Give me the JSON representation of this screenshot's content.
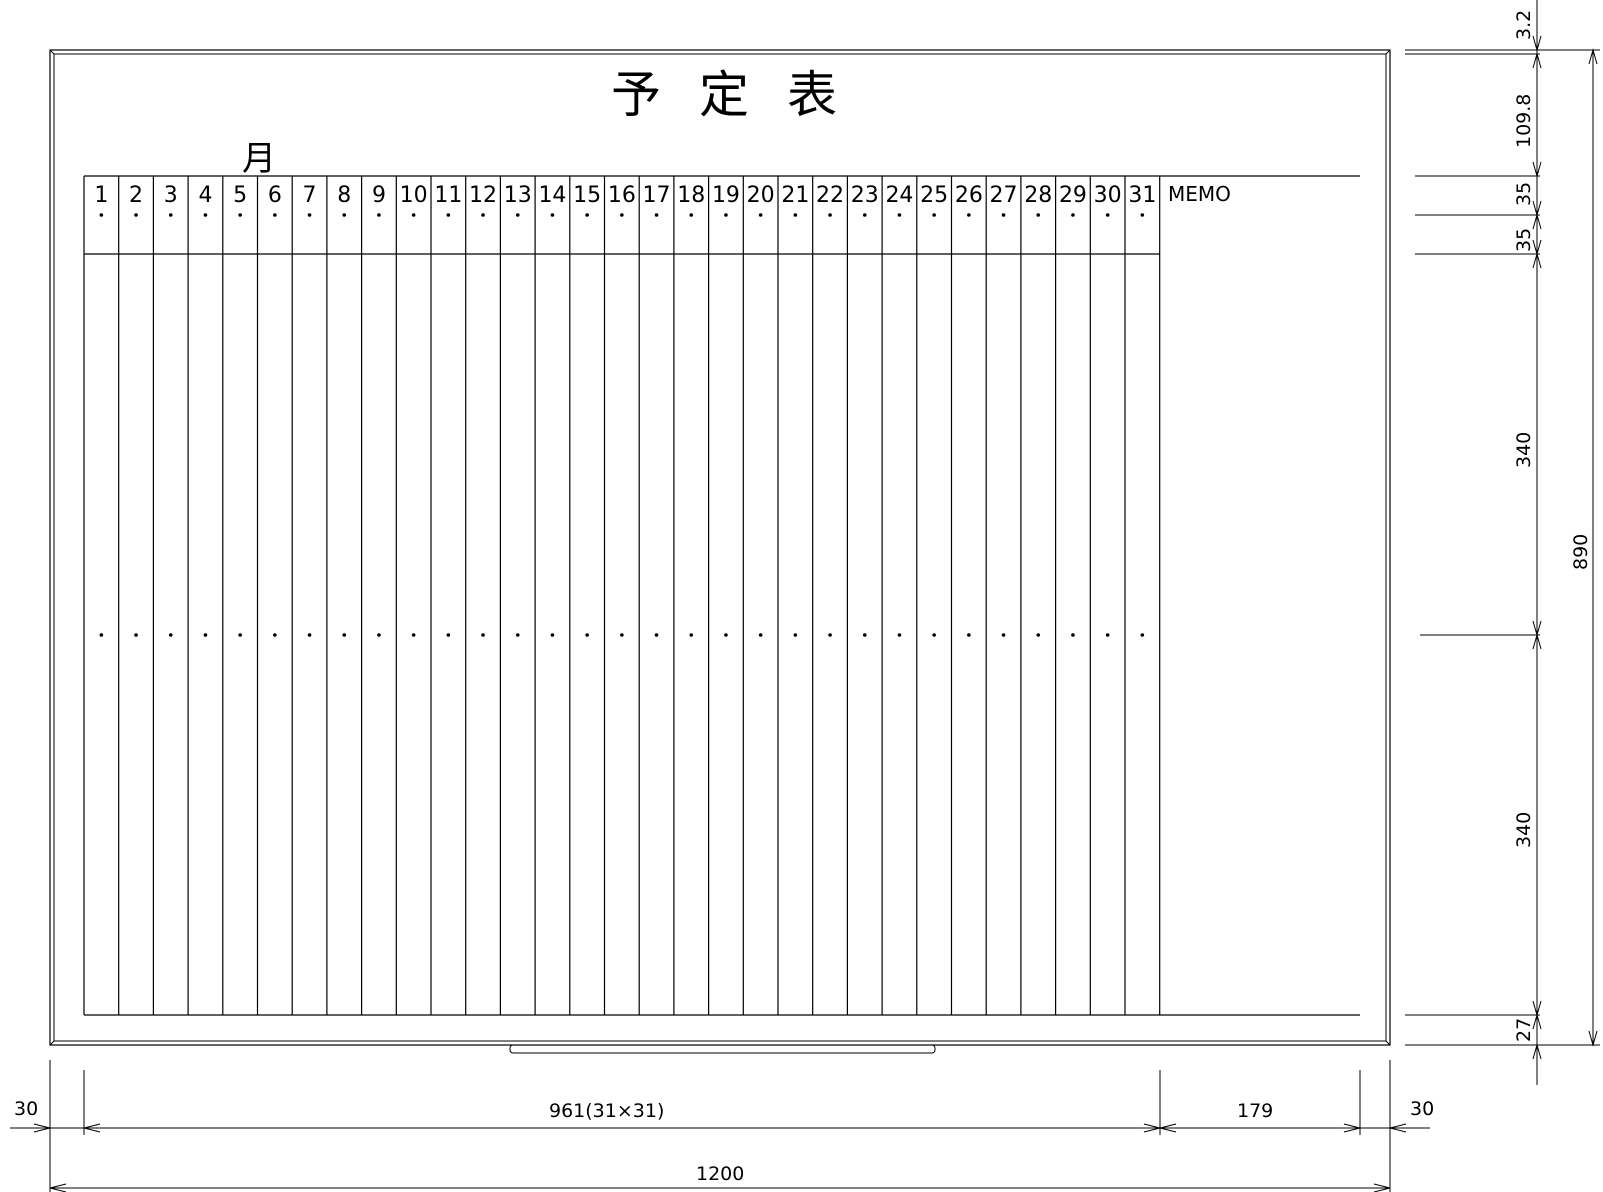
{
  "board": {
    "title": "予定表",
    "month_label": "月",
    "memo_label": "MEMO",
    "days": [
      "1",
      "2",
      "3",
      "4",
      "5",
      "6",
      "7",
      "8",
      "9",
      "10",
      "11",
      "12",
      "13",
      "14",
      "15",
      "16",
      "17",
      "18",
      "19",
      "20",
      "21",
      "22",
      "23",
      "24",
      "25",
      "26",
      "27",
      "28",
      "29",
      "30",
      "31"
    ]
  },
  "dimensions": {
    "left_margin": "30",
    "grid_width": "961(31×31)",
    "memo_width": "179",
    "right_margin": "30",
    "total_width": "1200",
    "top_frame": "3.2",
    "title_area": "109.8",
    "header_row_1": "35",
    "header_row_2": "35",
    "body_upper": "340",
    "body_lower": "340",
    "bottom_area": "27",
    "total_height": "890"
  }
}
